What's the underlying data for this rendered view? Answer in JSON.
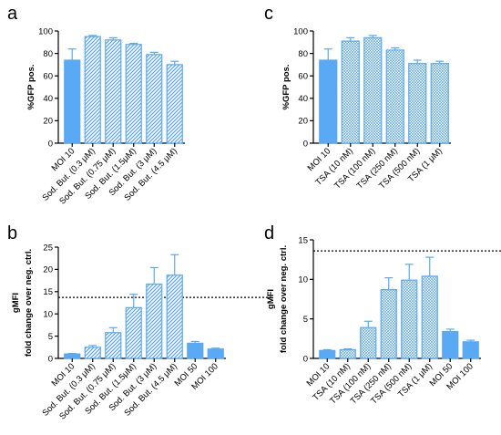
{
  "colors": {
    "bar_fill": "#5aa9f4",
    "bar_stroke": "#5aa9f4",
    "hatch_stroke": "#4a9ae8",
    "error_bar": "#5aa9f4",
    "axis": "#000000",
    "reference_line": "#000000"
  },
  "chart_data": [
    {
      "panel": "a",
      "type": "bar",
      "ylabel": "%GFP pos.",
      "ylim": [
        0,
        100
      ],
      "yticks": [
        0,
        20,
        40,
        60,
        80,
        100
      ],
      "categories": [
        "MOI 10",
        "Sod. But. (0.3 μM)",
        "Sod. But. (0.75 μM)",
        "Sod. But. (1.5μM)",
        "Sod. But. (3 μM)",
        "Sod. But. (4.5 μM)"
      ],
      "values": [
        74,
        95,
        92,
        88,
        79,
        70
      ],
      "errors": [
        10,
        1,
        2,
        1,
        2,
        3
      ],
      "fills": [
        "solid",
        "hatch",
        "hatch",
        "hatch",
        "hatch",
        "hatch"
      ]
    },
    {
      "panel": "b",
      "type": "bar",
      "ylabel": "gMFI\nfold change over neg. ctrl.",
      "ylim": [
        0,
        25
      ],
      "yticks": [
        0,
        5,
        10,
        15,
        20,
        25
      ],
      "reference_line": 13.7,
      "categories": [
        "MOI 10",
        "Sod. But. (0.3 μM)",
        "Sod. But. (0.75 μM)",
        "Sod. But. (1.5μM)",
        "Sod. But. (3 μM)",
        "Sod. But. (4.5 μM)",
        "MOI 50",
        "MOI 100"
      ],
      "values": [
        1.0,
        2.5,
        5.8,
        11.4,
        16.7,
        18.7,
        3.4,
        2.1
      ],
      "errors": [
        0.1,
        0.4,
        1.1,
        3.0,
        3.7,
        4.6,
        0.4,
        0.2
      ],
      "fills": [
        "solid",
        "hatch",
        "hatch",
        "hatch",
        "hatch",
        "hatch",
        "solid",
        "solid"
      ]
    },
    {
      "panel": "c",
      "type": "bar",
      "ylabel": "%GFP pos.",
      "ylim": [
        0,
        100
      ],
      "yticks": [
        0,
        20,
        40,
        60,
        80,
        100
      ],
      "categories": [
        "MOI 10",
        "TSA (10 nM)",
        "TSA (100 nM)",
        "TSA (250 nM)",
        "TSA (500 nM)",
        "TSA (1 μM)"
      ],
      "values": [
        74,
        91,
        94,
        83,
        71,
        71
      ],
      "errors": [
        10,
        3,
        2,
        2,
        3,
        2
      ],
      "fills": [
        "solid",
        "cross",
        "cross",
        "cross",
        "cross",
        "cross"
      ]
    },
    {
      "panel": "d",
      "type": "bar",
      "ylabel": "gMFI\nfold change over neg. ctrl.",
      "ylim": [
        0,
        15
      ],
      "yticks": [
        0,
        5,
        10,
        15
      ],
      "reference_line": 13.6,
      "categories": [
        "MOI 10",
        "TSA (10 nM)",
        "TSA (100 nM)",
        "TSA (250 nM)",
        "TSA (500 nM)",
        "TSA (1 μM)",
        "MOI 50",
        "MOI 100"
      ],
      "values": [
        1.0,
        1.1,
        3.9,
        8.7,
        9.9,
        10.4,
        3.4,
        2.1
      ],
      "errors": [
        0.1,
        0.1,
        0.8,
        1.5,
        2.0,
        2.4,
        0.3,
        0.2
      ],
      "fills": [
        "solid",
        "cross",
        "cross",
        "cross",
        "cross",
        "cross",
        "solid",
        "solid"
      ]
    }
  ]
}
